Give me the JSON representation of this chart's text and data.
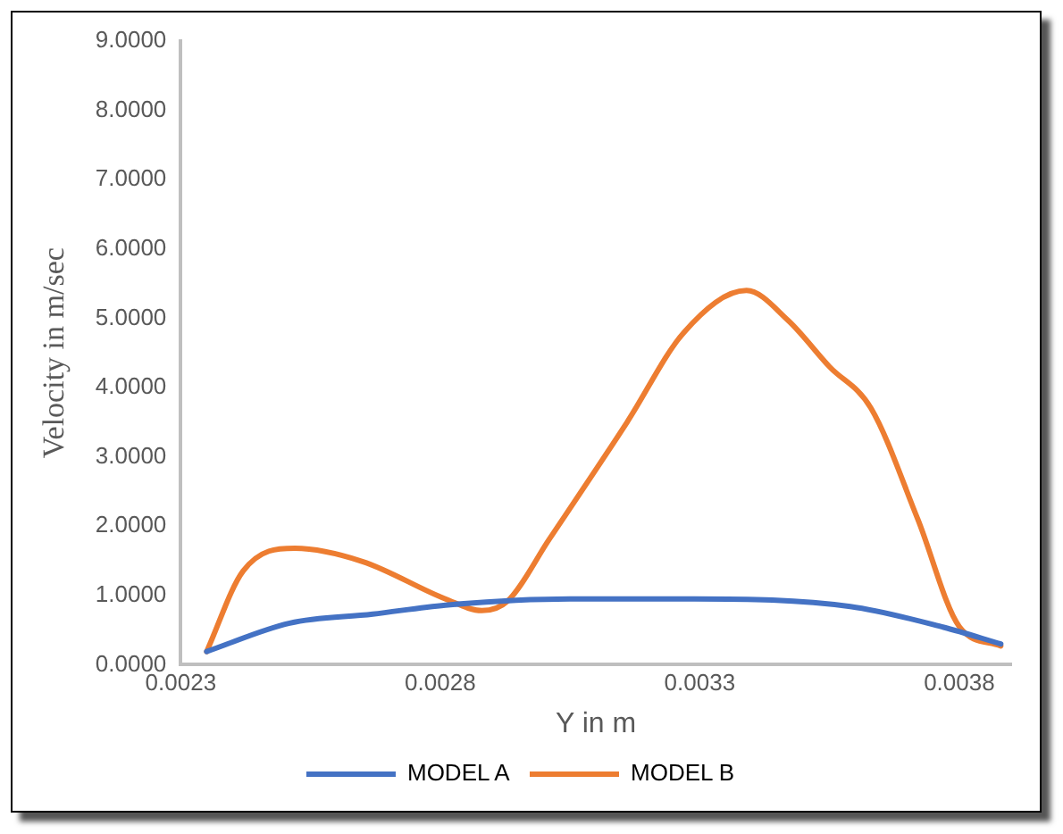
{
  "chart_data": {
    "type": "line",
    "xlabel": "Y in m",
    "ylabel": "Velocity in m/sec",
    "xlim": [
      0.0023,
      0.0039
    ],
    "xticks": [
      0.0023,
      0.0028,
      0.0033,
      0.0038
    ],
    "ylim": [
      0,
      9
    ],
    "yticks": [
      {
        "value": 0,
        "label": "0.0000"
      },
      {
        "value": 1,
        "label": "1.0000"
      },
      {
        "value": 2,
        "label": "2.0000"
      },
      {
        "value": 3,
        "label": "3.0000"
      },
      {
        "value": 4,
        "label": "4.0000"
      },
      {
        "value": 5,
        "label": "5.0000"
      },
      {
        "value": 6,
        "label": "6.0000"
      },
      {
        "value": 7,
        "label": "7.0000"
      },
      {
        "value": 8,
        "label": "8.0000"
      },
      {
        "value": 9,
        "label": "9.0000"
      }
    ],
    "grid": false,
    "legend": "bottom",
    "marker": "none",
    "line_style": "solid",
    "series": [
      {
        "name": "MODEL A",
        "color": "#4472c4",
        "x": [
          0.00235,
          0.00251,
          0.00267,
          0.00281,
          0.00305,
          0.00329,
          0.00359,
          0.00377,
          0.00388
        ],
        "values": [
          0.19,
          0.6,
          0.73,
          0.86,
          0.95,
          0.95,
          0.84,
          0.54,
          0.3
        ]
      },
      {
        "name": "MODEL B",
        "color": "#ed7d31",
        "x": [
          0.00235,
          0.00242,
          0.00252,
          0.00265,
          0.00281,
          0.00288,
          0.00293,
          0.00301,
          0.00316,
          0.00327,
          0.00339,
          0.00347,
          0.00355,
          0.00363,
          0.00372,
          0.0038,
          0.00388
        ],
        "values": [
          0.19,
          1.35,
          1.68,
          1.49,
          0.95,
          0.78,
          0.92,
          1.81,
          3.5,
          4.8,
          5.4,
          4.97,
          4.3,
          3.7,
          2.1,
          0.55,
          0.27
        ]
      }
    ]
  }
}
